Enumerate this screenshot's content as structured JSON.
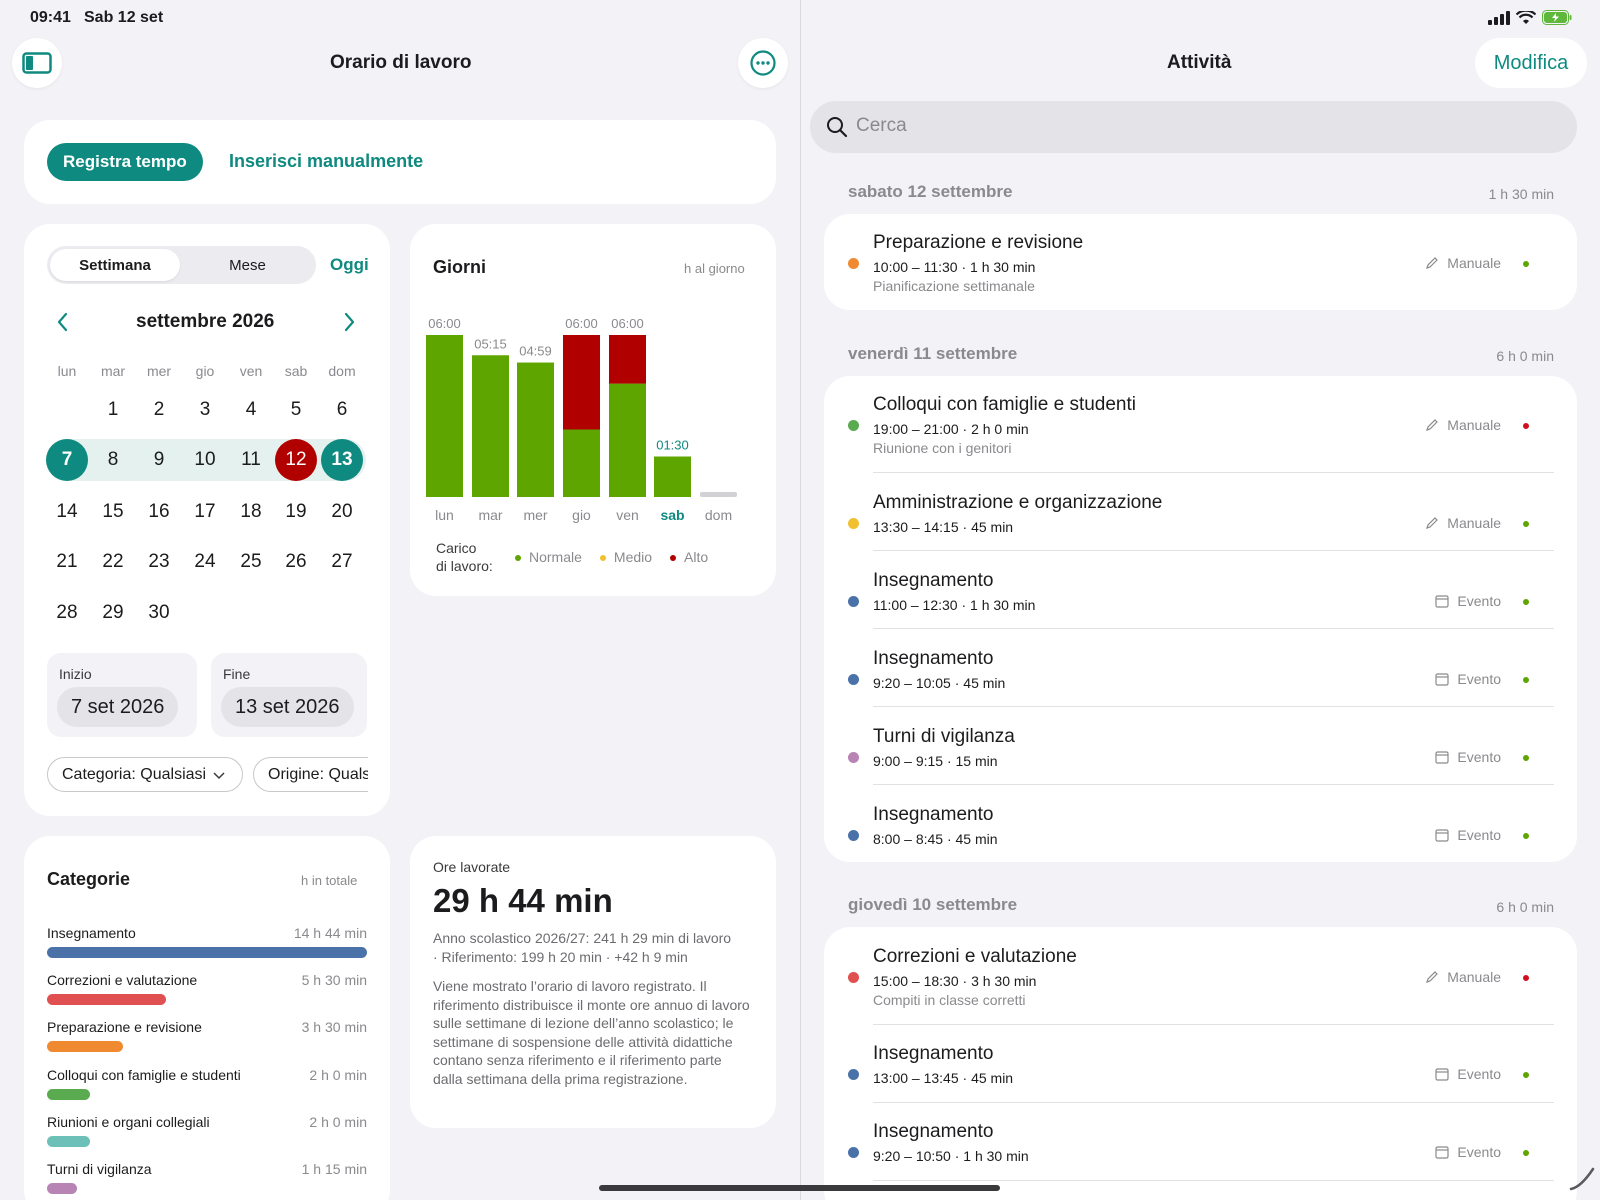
{
  "status": {
    "time": "09:41",
    "date": "Sab 12 set"
  },
  "left": {
    "title": "Orario di lavoro",
    "actions": {
      "record": "Registra tempo",
      "manual": "Inserisci manualmente"
    },
    "calendar": {
      "seg_week": "Settimana",
      "seg_month": "Mese",
      "today": "Oggi",
      "month_label": "settembre 2026",
      "weekdays": [
        "lun",
        "mar",
        "mer",
        "gio",
        "ven",
        "sab",
        "dom"
      ],
      "weeks": [
        [
          "",
          "1",
          "2",
          "3",
          "4",
          "5",
          "6"
        ],
        [
          "7",
          "8",
          "9",
          "10",
          "11",
          "12",
          "13"
        ],
        [
          "14",
          "15",
          "16",
          "17",
          "18",
          "19",
          "20"
        ],
        [
          "21",
          "22",
          "23",
          "24",
          "25",
          "26",
          "27"
        ],
        [
          "28",
          "29",
          "30",
          "",
          "",
          "",
          ""
        ]
      ],
      "start_label": "Inizio",
      "start_value": "7 set 2026",
      "end_label": "Fine",
      "end_value": "13 set 2026",
      "filter_category": "Categoria: Qualsiasi",
      "filter_origin": "Origine: Qualsiasi"
    },
    "days_chart": {
      "title": "Giorni",
      "subtitle": "h al giorno",
      "legend_label_1": "Carico",
      "legend_label_2": "di lavoro:",
      "legend": [
        "Normale",
        "Medio",
        "Alto"
      ],
      "colors": {
        "normal": "#5fa500",
        "medium": "#f0c030",
        "high": "#b00000",
        "accent": "#0f8a80"
      }
    },
    "chart_data": {
      "type": "bar",
      "categories": [
        "lun",
        "mar",
        "mer",
        "gio",
        "ven",
        "sab",
        "dom"
      ],
      "value_labels": [
        "06:00",
        "05:15",
        "04:59",
        "06:00",
        "06:00",
        "01:30",
        ""
      ],
      "series": [
        {
          "name": "Normale",
          "values": [
            6.0,
            5.25,
            4.98,
            2.5,
            4.2,
            1.5,
            0
          ]
        },
        {
          "name": "Alto",
          "values": [
            0,
            0,
            0,
            3.5,
            1.8,
            0,
            0
          ]
        }
      ],
      "ylim": [
        0,
        6
      ]
    },
    "categories": {
      "title": "Categorie",
      "subtitle": "h in totale",
      "items": [
        {
          "name": "Insegnamento",
          "value": "14 h 44 min",
          "hours": 14.73,
          "color": "#4a72a8"
        },
        {
          "name": "Correzioni e valutazione",
          "value": "5 h 30 min",
          "hours": 5.5,
          "color": "#e05050"
        },
        {
          "name": "Preparazione e revisione",
          "value": "3 h 30 min",
          "hours": 3.5,
          "color": "#f08a30"
        },
        {
          "name": "Colloqui con famiglie e studenti",
          "value": "2 h 0 min",
          "hours": 2.0,
          "color": "#5aaa50"
        },
        {
          "name": "Riunioni e organi collegiali",
          "value": "2 h 0 min",
          "hours": 2.0,
          "color": "#6cc0b8"
        },
        {
          "name": "Turni di vigilanza",
          "value": "1 h 15 min",
          "hours": 1.25,
          "color": "#b884b4"
        }
      ]
    },
    "worked": {
      "label": "Ore lavorate",
      "value": "29 h 44 min",
      "line1": "Anno scolastico 2026/27: 241 h 29 min di lavoro",
      "line2": "· Riferimento: 199 h 20 min · +42 h 9 min",
      "description": "Viene mostrato l’orario di lavoro registrato. Il riferimento distribuisce il monte ore annuo di lavoro sulle settimane di lezione dell’anno scolastico; le settimane di sospensione delle attività didattiche contano senza riferimento e il riferimento parte dalla settimana della prima registrazione."
    }
  },
  "right": {
    "title": "Attività",
    "edit": "Modifica",
    "search_placeholder": "Cerca",
    "sections": [
      {
        "label": "sabato 12 settembre",
        "total": "1 h 30 min"
      },
      {
        "label": "venerdì 11 settembre",
        "total": "6 h 0 min"
      },
      {
        "label": "giovedì 10 settembre",
        "total": "6 h 0 min"
      }
    ],
    "entries": [
      {
        "title": "Preparazione e revisione",
        "time": "10:00 – 11:30 · 1 h 30 min",
        "note": "Pianificazione settimanale",
        "source": "Manuale",
        "source_icon": "pencil-icon",
        "dot": "#f08a30",
        "status": "#5fa500"
      },
      {
        "title": "Colloqui con famiglie e studenti",
        "time": "19:00 – 21:00 · 2 h 0 min",
        "note": "Riunione con i genitori",
        "source": "Manuale",
        "source_icon": "pencil-icon",
        "dot": "#5aaa50",
        "status": "#d01020"
      },
      {
        "title": "Amministrazione e organizzazione",
        "time": "13:30 – 14:15 · 45 min",
        "note": "",
        "source": "Manuale",
        "source_icon": "pencil-icon",
        "dot": "#f0c030",
        "status": "#5fa500"
      },
      {
        "title": "Insegnamento",
        "time": "11:00 – 12:30 · 1 h 30 min",
        "note": "",
        "source": "Evento",
        "source_icon": "calendar-icon",
        "dot": "#4a72a8",
        "status": "#5fa500"
      },
      {
        "title": "Insegnamento",
        "time": "9:20 – 10:05 · 45 min",
        "note": "",
        "source": "Evento",
        "source_icon": "calendar-icon",
        "dot": "#4a72a8",
        "status": "#5fa500"
      },
      {
        "title": "Turni di vigilanza",
        "time": "9:00 – 9:15 · 15 min",
        "note": "",
        "source": "Evento",
        "source_icon": "calendar-icon",
        "dot": "#b884b4",
        "status": "#5fa500"
      },
      {
        "title": "Insegnamento",
        "time": "8:00 – 8:45 · 45 min",
        "note": "",
        "source": "Evento",
        "source_icon": "calendar-icon",
        "dot": "#4a72a8",
        "status": "#5fa500"
      },
      {
        "title": "Correzioni e valutazione",
        "time": "15:00 – 18:30 · 3 h 30 min",
        "note": "Compiti in classe corretti",
        "source": "Manuale",
        "source_icon": "pencil-icon",
        "dot": "#e05050",
        "status": "#d01020"
      },
      {
        "title": "Insegnamento",
        "time": "13:00 – 13:45 · 45 min",
        "note": "",
        "source": "Evento",
        "source_icon": "calendar-icon",
        "dot": "#4a72a8",
        "status": "#5fa500"
      },
      {
        "title": "Insegnamento",
        "time": "9:20 – 10:50 · 1 h 30 min",
        "note": "",
        "source": "Evento",
        "source_icon": "calendar-icon",
        "dot": "#4a72a8",
        "status": "#5fa500"
      }
    ]
  }
}
